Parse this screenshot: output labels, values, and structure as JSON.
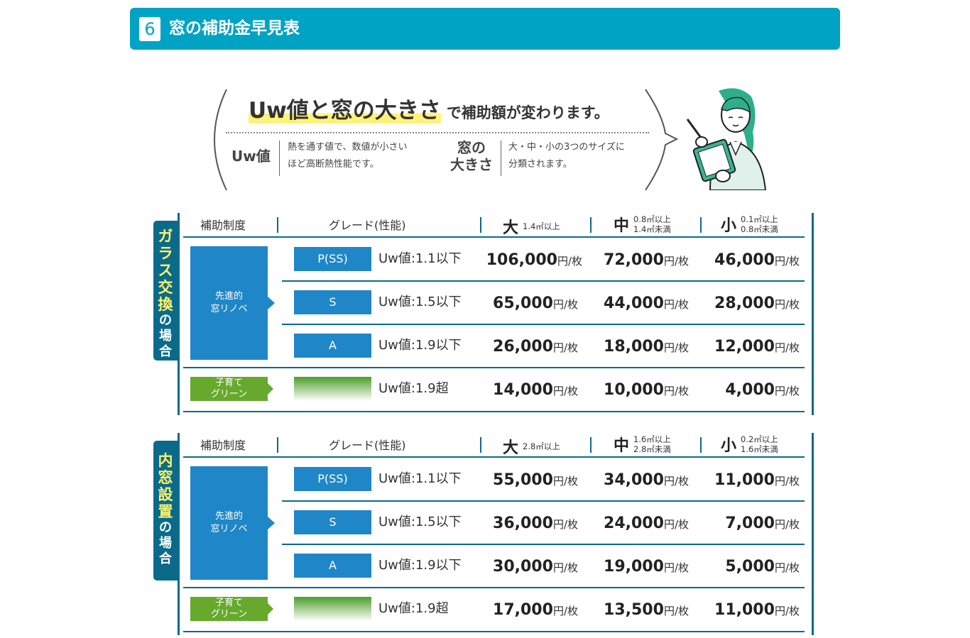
{
  "header": {
    "number": "6",
    "title": "窓の補助金早見表"
  },
  "bubble": {
    "headline_big": "Uw値と窓の大きさ",
    "headline_small": "で補助額が変わります。",
    "uw_term": "Uw値",
    "uw_desc_1": "熱を通す値で、数値が小さい",
    "uw_desc_2": "ほど高断熱性能です。",
    "size_term_1": "窓の",
    "size_term_2": "大きさ",
    "size_desc_1": "大・中・小の3つのサイズに",
    "size_desc_2": "分類されます。"
  },
  "colors": {
    "header": "#00a3c4",
    "table_line": "#0b6a8a",
    "grade_blue": "#1f87c8",
    "green": "#66a92c",
    "highlight": "#fff27a"
  },
  "tables": [
    {
      "side_yellow": [
        "ガ",
        "ラ",
        "ス",
        "交",
        "換"
      ],
      "side_white": [
        "の",
        "場",
        "合"
      ],
      "headers": {
        "system": "補助制度",
        "grade": "グレード(性能)",
        "large": "大",
        "large_sub_1": "1.4㎡以上",
        "large_sub_2": "",
        "medium": "中",
        "medium_sub_1": "0.8㎡以上",
        "medium_sub_2": "1.4㎡未満",
        "small": "小",
        "small_sub_1": "0.1㎡以上",
        "small_sub_2": "0.8㎡未満"
      },
      "system_blue_1": "先進的",
      "system_blue_2": "窓リノベ",
      "system_green_1": "子育て",
      "system_green_2": "グリーン",
      "unit": "円/枚",
      "rows": [
        {
          "grade": "P(SS)",
          "uw": "Uw値:1.1以下",
          "large": "106,000",
          "medium": "72,000",
          "small": "46,000"
        },
        {
          "grade": "S",
          "uw": "Uw値:1.5以下",
          "large": "65,000",
          "medium": "44,000",
          "small": "28,000"
        },
        {
          "grade": "A",
          "uw": "Uw値:1.9以下",
          "large": "26,000",
          "medium": "18,000",
          "small": "12,000"
        },
        {
          "grade": "",
          "uw": "Uw値:1.9超",
          "large": "14,000",
          "medium": "10,000",
          "small": "4,000"
        }
      ]
    },
    {
      "side_yellow": [
        "内",
        "窓",
        "設",
        "置"
      ],
      "side_white": [
        "の",
        "場",
        "合"
      ],
      "headers": {
        "system": "補助制度",
        "grade": "グレード(性能)",
        "large": "大",
        "large_sub_1": "2.8㎡以上",
        "large_sub_2": "",
        "medium": "中",
        "medium_sub_1": "1.6㎡以上",
        "medium_sub_2": "2.8㎡未満",
        "small": "小",
        "small_sub_1": "0.2㎡以上",
        "small_sub_2": "1.6㎡未満"
      },
      "system_blue_1": "先進的",
      "system_blue_2": "窓リノベ",
      "system_green_1": "子育て",
      "system_green_2": "グリーン",
      "unit": "円/枚",
      "rows": [
        {
          "grade": "P(SS)",
          "uw": "Uw値:1.1以下",
          "large": "55,000",
          "medium": "34,000",
          "small": "11,000"
        },
        {
          "grade": "S",
          "uw": "Uw値:1.5以下",
          "large": "36,000",
          "medium": "24,000",
          "small": "7,000"
        },
        {
          "grade": "A",
          "uw": "Uw値:1.9以下",
          "large": "30,000",
          "medium": "19,000",
          "small": "5,000"
        },
        {
          "grade": "",
          "uw": "Uw値:1.9超",
          "large": "17,000",
          "medium": "13,500",
          "small": "11,000"
        }
      ]
    }
  ]
}
